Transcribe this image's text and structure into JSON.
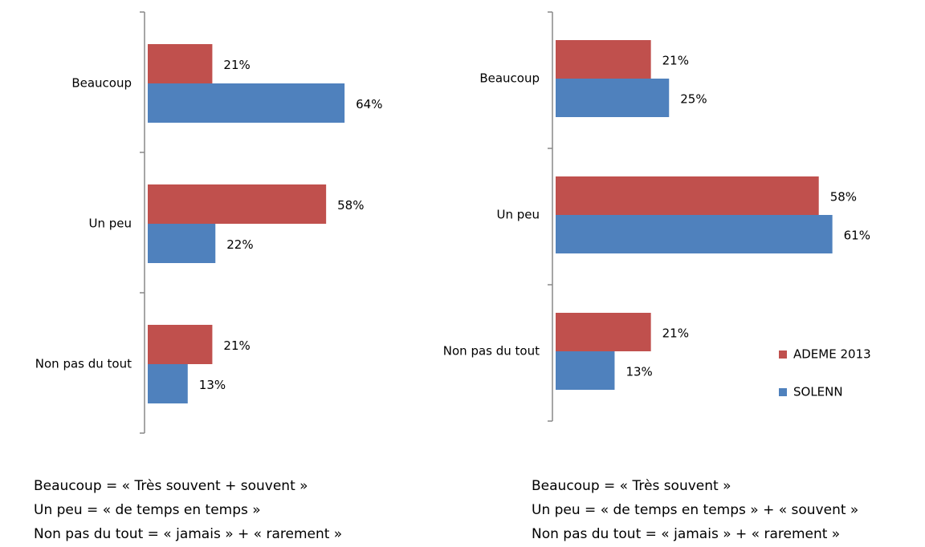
{
  "chart_data": [
    {
      "type": "bar",
      "orientation": "horizontal",
      "categories": [
        "Beaucoup",
        "Un peu",
        "Non pas du tout"
      ],
      "series": [
        {
          "color": "#c0504d",
          "values": [
            21,
            58,
            21
          ],
          "value_labels": [
            "21%",
            "58%",
            "21%"
          ]
        },
        {
          "color": "#4f81bd",
          "values": [
            64,
            22,
            13
          ],
          "value_labels": [
            "64%",
            "22%",
            "13%"
          ]
        }
      ],
      "notes": [
        "Beaucoup = « Très souvent + souvent »",
        "Un peu = « de temps en temps »",
        "Non pas du tout = « jamais » + « rarement »"
      ]
    },
    {
      "type": "bar",
      "orientation": "horizontal",
      "categories": [
        "Beaucoup",
        "Un peu",
        "Non pas du tout"
      ],
      "series": [
        {
          "name": "ADEME 2013",
          "color": "#c0504d",
          "values": [
            21,
            58,
            21
          ],
          "value_labels": [
            "21%",
            "58%",
            "21%"
          ]
        },
        {
          "name": "SOLENN",
          "color": "#4f81bd",
          "values": [
            25,
            61,
            13
          ],
          "value_labels": [
            "25%",
            "61%",
            "13%"
          ]
        }
      ],
      "legend": "right",
      "notes": [
        "Beaucoup = « Très souvent »",
        "Un peu = « de temps en temps » + « souvent »",
        "Non pas du tout = « jamais » + « rarement »"
      ]
    }
  ]
}
